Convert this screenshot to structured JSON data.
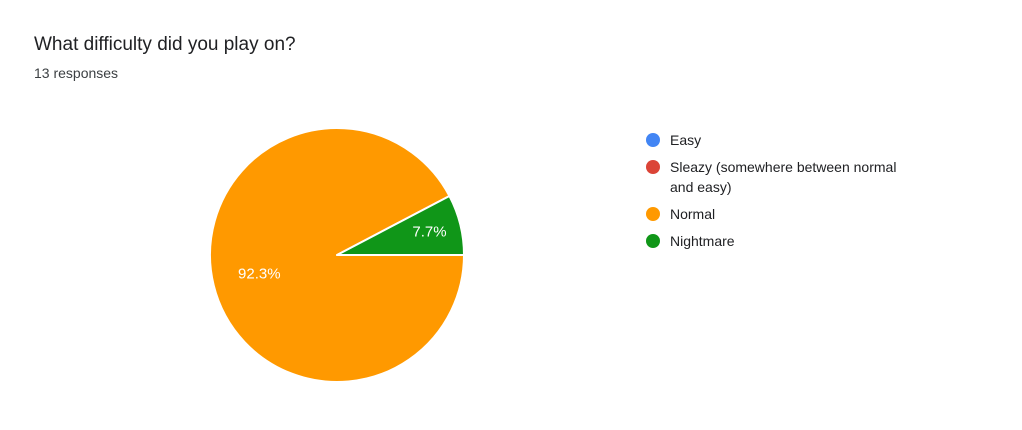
{
  "chart_data": {
    "type": "pie",
    "title": "What difficulty did you play on?",
    "subtitle": "13 responses",
    "total_responses": 13,
    "categories": [
      "Easy",
      "Sleazy (somewhere between normal and easy)",
      "Normal",
      "Nightmare"
    ],
    "values": [
      0,
      0,
      12,
      1
    ],
    "percents": [
      0,
      0,
      92.3,
      7.7
    ],
    "percent_labels": [
      "",
      "",
      "92.3%",
      "7.7%"
    ],
    "colors": [
      "#4285F4",
      "#DB4437",
      "#FF9900",
      "#109618"
    ],
    "legend_position": "right",
    "start_angle_deg": 0,
    "direction": "clockwise",
    "slice_separator_color": "#ffffff",
    "slice_label_color": "#ffffff",
    "title_color": "#202124",
    "subtitle_color": "#3c4043",
    "legend_text_color": "#202124"
  }
}
